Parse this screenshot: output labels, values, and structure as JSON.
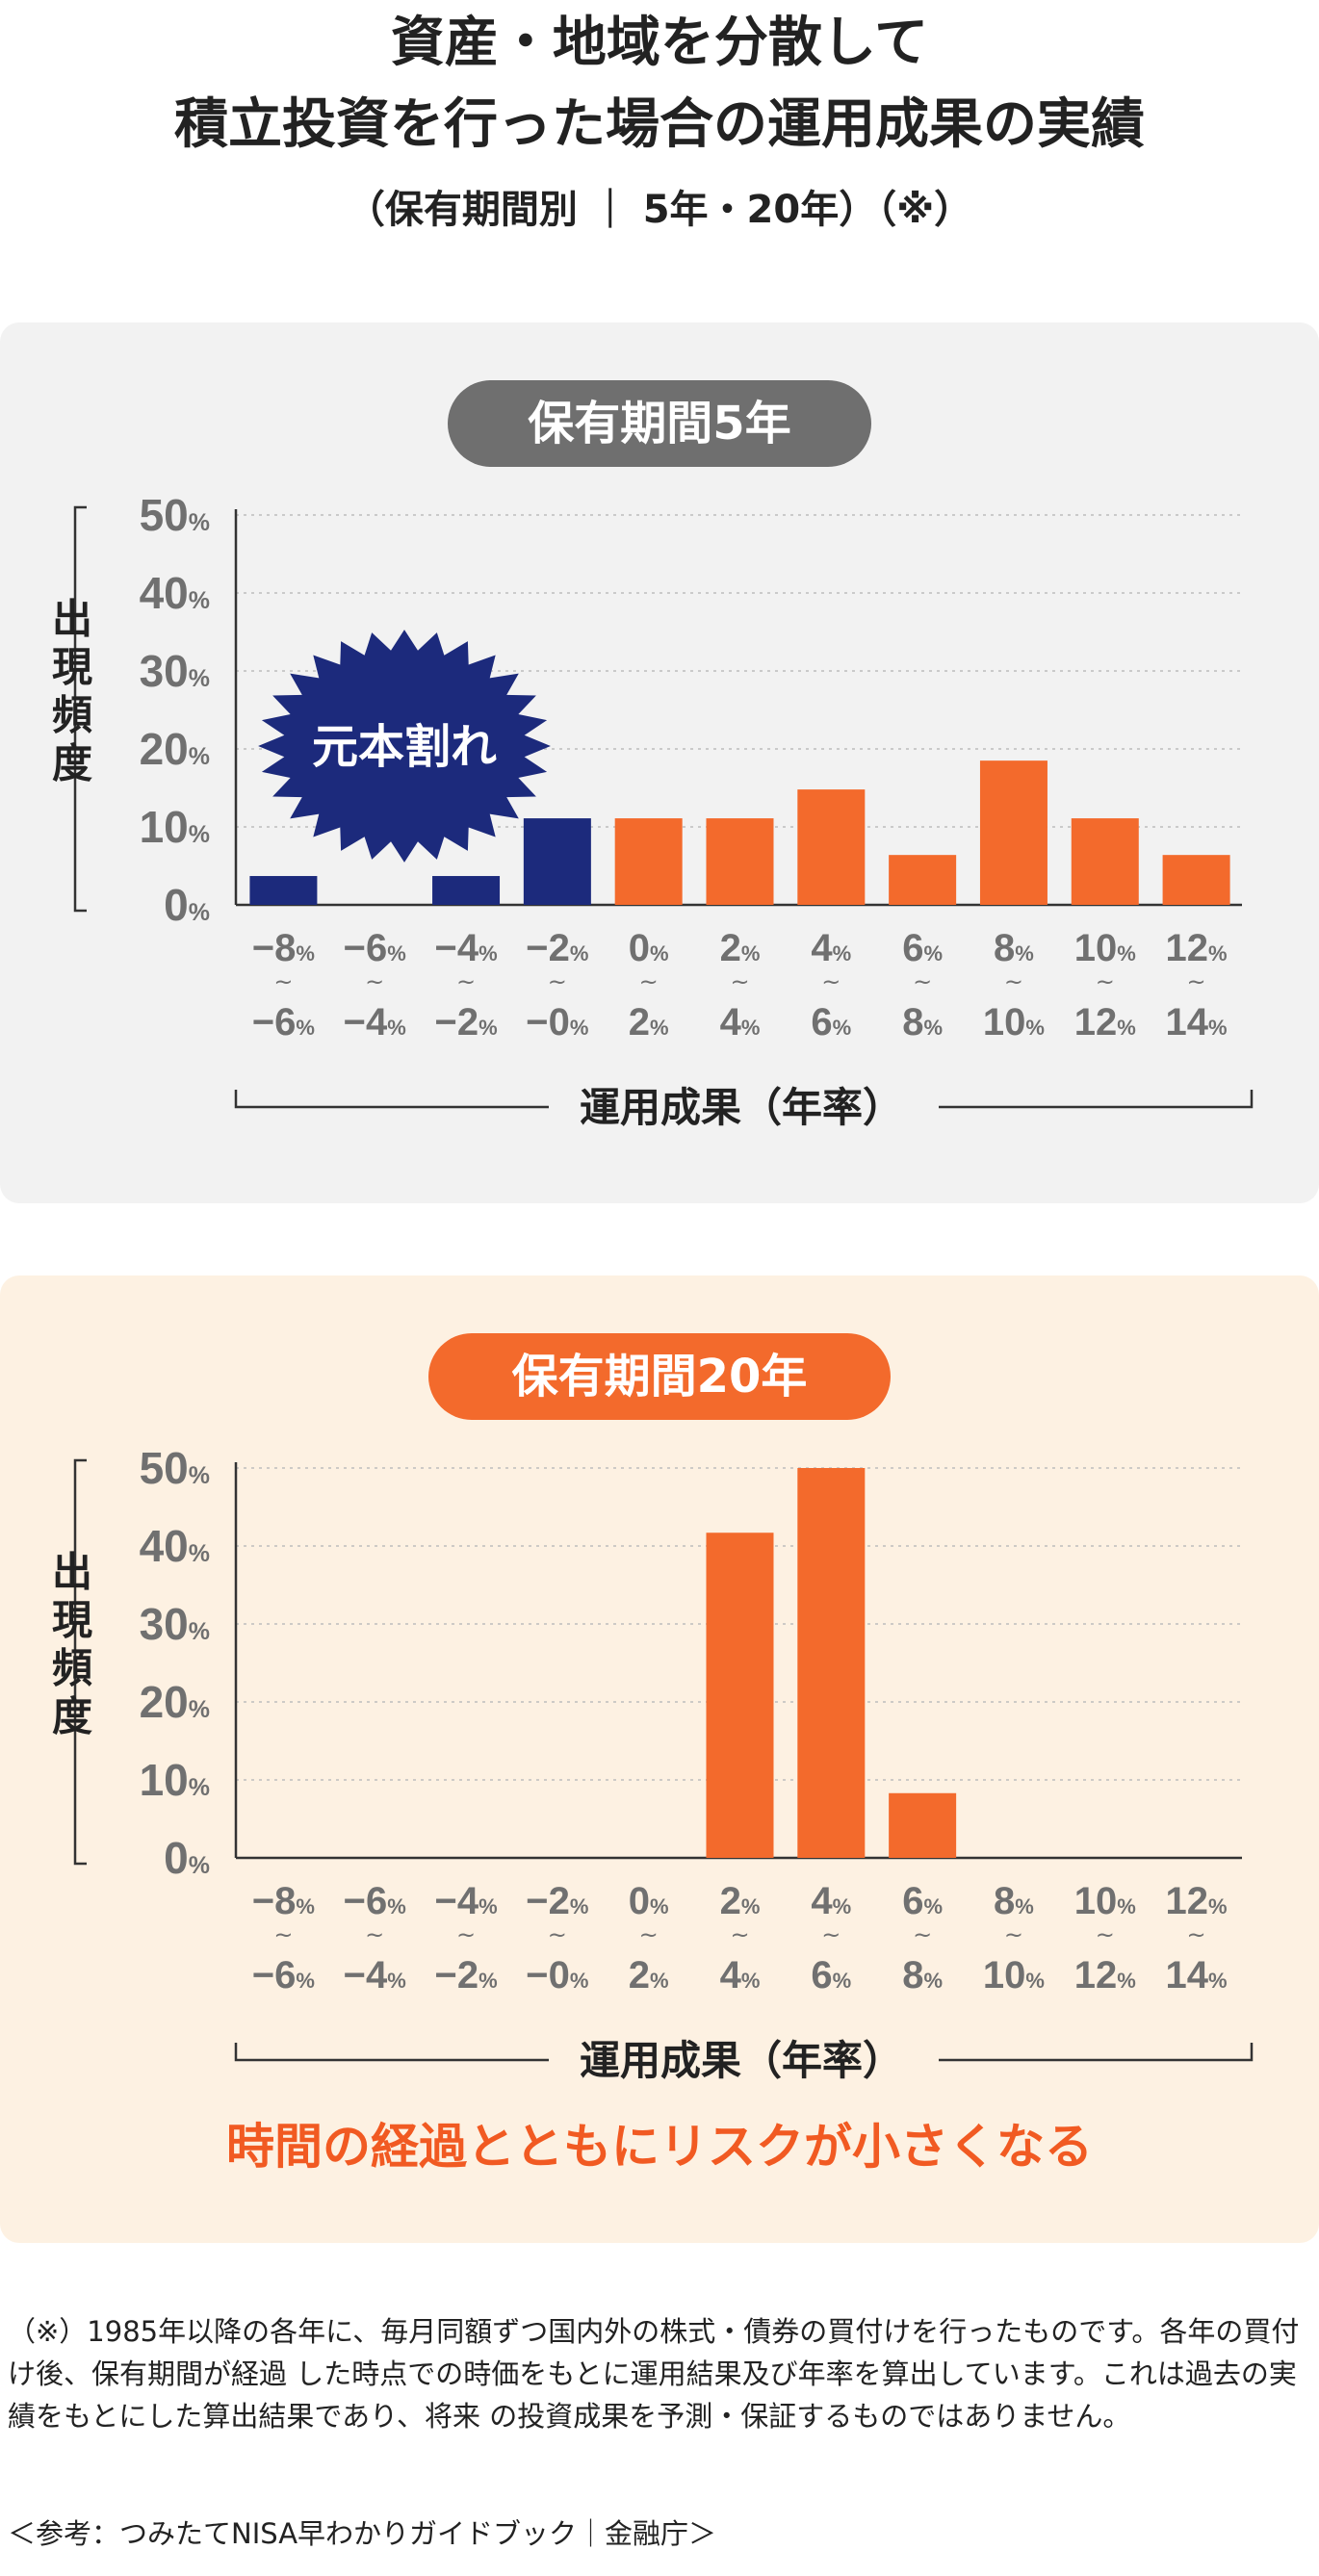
{
  "title_line1": "資産・地域を分散して",
  "title_line2": "積立投資を行った場合の運用成果の実績",
  "subtitle": "（保有期間別 ｜ 5年・20年）（※）",
  "y_axis_label": "出現頻度",
  "x_axis_label": "運用成果（年率）",
  "principal_loss_label": "元本割れ",
  "conclusion": "時間の経過とともにリスクが小さくなる",
  "note": "（※）1985年以降の各年に、毎月同額ずつ国内外の株式・債券の買付けを行ったものです。各年の買付け後、保有期間が経過 した時点での時価をもとに運用結果及び年率を算出しています。これは過去の実績をもとにした算出結果であり、将来 の投資成果を予測・保証するものではありません。",
  "source": "＜参考：つみたてNISA早わかりガイドブック｜金融庁＞",
  "colors": {
    "loss": "#1c2a7c",
    "gain": "#f36a2c",
    "pill_5y": "#6f6f6f",
    "pill_20y": "#f36a2c",
    "axis_text": "#707070"
  },
  "chart_data": [
    {
      "type": "bar",
      "title": "保有期間5年",
      "xlabel": "運用成果（年率）",
      "ylabel": "出現頻度",
      "ylim": [
        0,
        50
      ],
      "yticks": [
        "0",
        "10",
        "20",
        "30",
        "40",
        "50"
      ],
      "y_unit": "%",
      "categories": [
        {
          "top": "−8",
          "bottom": "−6"
        },
        {
          "top": "−6",
          "bottom": "−4"
        },
        {
          "top": "−4",
          "bottom": "−2"
        },
        {
          "top": "−2",
          "bottom": "−0"
        },
        {
          "top": "0",
          "bottom": "2"
        },
        {
          "top": "2",
          "bottom": "4"
        },
        {
          "top": "4",
          "bottom": "6"
        },
        {
          "top": "6",
          "bottom": "8"
        },
        {
          "top": "8",
          "bottom": "10"
        },
        {
          "top": "10",
          "bottom": "12"
        },
        {
          "top": "12",
          "bottom": "14"
        }
      ],
      "values": [
        3.7,
        0,
        3.7,
        11.1,
        11.1,
        11.1,
        14.8,
        6.4,
        18.5,
        11.1,
        6.4
      ],
      "loss_categories": 4,
      "grid": true
    },
    {
      "type": "bar",
      "title": "保有期間20年",
      "xlabel": "運用成果（年率）",
      "ylabel": "出現頻度",
      "ylim": [
        0,
        50
      ],
      "yticks": [
        "0",
        "10",
        "20",
        "30",
        "40",
        "50"
      ],
      "y_unit": "%",
      "categories": [
        {
          "top": "−8",
          "bottom": "−6"
        },
        {
          "top": "−6",
          "bottom": "−4"
        },
        {
          "top": "−4",
          "bottom": "−2"
        },
        {
          "top": "−2",
          "bottom": "−0"
        },
        {
          "top": "0",
          "bottom": "2"
        },
        {
          "top": "2",
          "bottom": "4"
        },
        {
          "top": "4",
          "bottom": "6"
        },
        {
          "top": "6",
          "bottom": "8"
        },
        {
          "top": "8",
          "bottom": "10"
        },
        {
          "top": "10",
          "bottom": "12"
        },
        {
          "top": "12",
          "bottom": "14"
        }
      ],
      "values": [
        0,
        0,
        0,
        0,
        0,
        41.7,
        50,
        8.3,
        0,
        0,
        0
      ],
      "loss_categories": 4,
      "grid": true
    }
  ]
}
